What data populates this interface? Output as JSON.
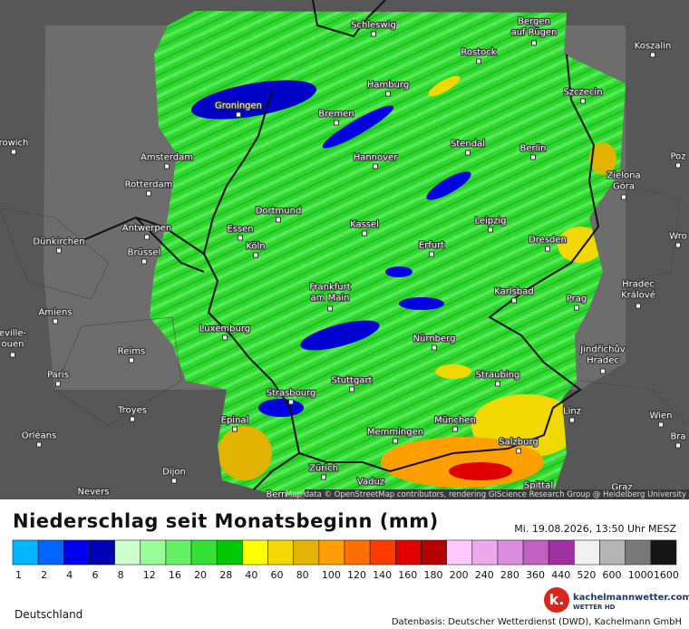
{
  "map": {
    "cities": [
      {
        "label": "Schleswig"
      },
      {
        "label": [
          "Bergen",
          "auf Rügen"
        ]
      },
      {
        "label": "Rostock"
      },
      {
        "label": "Koszalin"
      },
      {
        "label": "Hamburg"
      },
      {
        "label": "Groningen"
      },
      {
        "label": "Szczecin"
      },
      {
        "label": "Bremen"
      },
      {
        "label": "Stendal"
      },
      {
        "label": "Berlin"
      },
      {
        "label": "Amsterdam"
      },
      {
        "label": "Hannover"
      },
      {
        "label": [
          "Zielona",
          "Góra"
        ]
      },
      {
        "label": "Rotterdam"
      },
      {
        "label": "Dortmund"
      },
      {
        "label": "Antwerpen"
      },
      {
        "label": "Essen"
      },
      {
        "label": "Kassel"
      },
      {
        "label": "Leipzig"
      },
      {
        "label": "Dresden"
      },
      {
        "label": "Dünkirchen"
      },
      {
        "label": "Brüssel"
      },
      {
        "label": "Köln"
      },
      {
        "label": "Erfurt"
      },
      {
        "label": [
          "Frankfurt",
          "am Main"
        ]
      },
      {
        "label": "Karlsbad"
      },
      {
        "label": [
          "Hradec",
          "Králové"
        ]
      },
      {
        "label": "Prag"
      },
      {
        "label": "Amiens"
      },
      {
        "label": "Luxemburg"
      },
      {
        "label": "Nürnberg"
      },
      {
        "label": [
          "Jindřichův",
          "Hradec"
        ]
      },
      {
        "label": "Reims"
      },
      {
        "label": "Paris"
      },
      {
        "label": "Stuttgart"
      },
      {
        "label": "Straubing"
      },
      {
        "label": "Strasbourg"
      },
      {
        "label": "Troyes"
      },
      {
        "label": "Linz"
      },
      {
        "label": "Wien"
      },
      {
        "label": "Bra"
      },
      {
        "label": "Epinal"
      },
      {
        "label": "München"
      },
      {
        "label": "Memmingen"
      },
      {
        "label": "Orléans"
      },
      {
        "label": "Salzburg"
      },
      {
        "label": "Dijon"
      },
      {
        "label": "Zürich"
      },
      {
        "label": "Vaduz"
      },
      {
        "label": "Spittal"
      },
      {
        "label": "Graz"
      },
      {
        "label": "Nevers"
      },
      {
        "label": "Bern"
      },
      {
        "label": "rowich"
      },
      {
        "label": "Poz"
      },
      {
        "label": "Wro"
      },
      {
        "label": [
          "eville-",
          "ouen"
        ]
      }
    ],
    "attribution": "Map data © OpenStreetMap contributors, rendering GIScience Research Group @ Heidelberg University"
  },
  "title": "Niederschlag seit Monatsbeginn (mm)",
  "timestamp": "Mi. 19.08.2026, 13:50 Uhr MESZ",
  "legend": {
    "colors": [
      "#00b4ff",
      "#0064ff",
      "#0000f0",
      "#0000b4",
      "#ccffcc",
      "#99ff99",
      "#66f066",
      "#33e033",
      "#00c800",
      "#ffff00",
      "#f0d800",
      "#e0b400",
      "#ffa000",
      "#ff7000",
      "#ff3c00",
      "#e00000",
      "#b40000",
      "#ffc8ff",
      "#eeaaee",
      "#dc8cdc",
      "#c060c0",
      "#a030a0",
      "#f0f0f0",
      "#b4b4b4",
      "#787878",
      "#141414"
    ],
    "ticks": [
      1,
      2,
      4,
      6,
      8,
      12,
      16,
      20,
      28,
      40,
      60,
      80,
      100,
      120,
      140,
      160,
      180,
      200,
      240,
      280,
      360,
      440,
      520,
      600,
      1000,
      1600
    ]
  },
  "region": "Deutschland",
  "logo": {
    "mark": "k.",
    "name": "kachelmannwetter.com",
    "sub": "WETTER HD"
  },
  "source": "Datenbasis: Deutscher Wetterdienst (DWD), Kachelmann GmbH"
}
